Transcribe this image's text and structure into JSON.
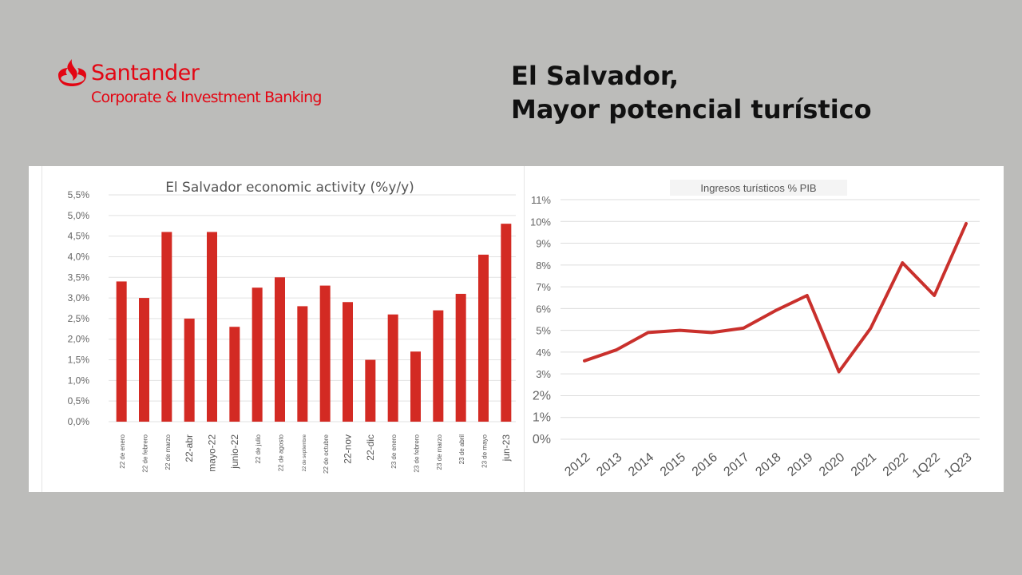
{
  "brand": {
    "name": "Santander",
    "subtitle": "Corporate & Investment Banking",
    "color": "#e30613",
    "icon": "flame-icon"
  },
  "slide": {
    "title_line1": "El Salvador,",
    "title_line2": "Mayor potencial turístico"
  },
  "chart_data": [
    {
      "type": "bar",
      "title": "El Salvador economic activity (%y/y)",
      "xlabel": "",
      "ylabel": "",
      "ylim": [
        0,
        5.5
      ],
      "yticks": [
        "0,0%",
        "0,5%",
        "1,0%",
        "1,5%",
        "2,0%",
        "2,5%",
        "3,0%",
        "3,5%",
        "4,0%",
        "4,5%",
        "5,0%",
        "5,5%"
      ],
      "categories": [
        "22 de enero",
        "22 de febrero",
        "22 de marzo",
        "22-abr",
        "mayo-22",
        "junio-22",
        "22 de julio",
        "22 de agosto",
        "22 de septiembre",
        "22 de octubre",
        "22-nov",
        "22-dic",
        "23 de enero",
        "23 de febrero",
        "23 de marzo",
        "23 de abril",
        "23 de mayo",
        "jun-23"
      ],
      "values": [
        3.4,
        3.0,
        4.6,
        2.5,
        4.6,
        2.3,
        3.25,
        3.5,
        2.8,
        3.3,
        2.9,
        1.5,
        2.6,
        1.7,
        2.7,
        3.1,
        4.05,
        4.8
      ],
      "grid": true,
      "color": "#d32a23"
    },
    {
      "type": "line",
      "title": "Ingresos turísticos % PIB",
      "xlabel": "",
      "ylabel": "",
      "ylim": [
        0,
        11
      ],
      "yticks": [
        "0%",
        "1%",
        "2%",
        "3%",
        "4%",
        "5%",
        "6%",
        "7%",
        "8%",
        "9%",
        "10%",
        "11%"
      ],
      "categories": [
        "2012",
        "2013",
        "2014",
        "2015",
        "2016",
        "2017",
        "2018",
        "2019",
        "2020",
        "2021",
        "2022",
        "1Q22",
        "1Q23"
      ],
      "values": [
        3.6,
        4.1,
        4.9,
        5.0,
        4.9,
        5.1,
        5.9,
        6.6,
        3.1,
        5.1,
        8.1,
        6.6,
        9.9
      ],
      "grid": true,
      "color": "#c9302c"
    }
  ]
}
